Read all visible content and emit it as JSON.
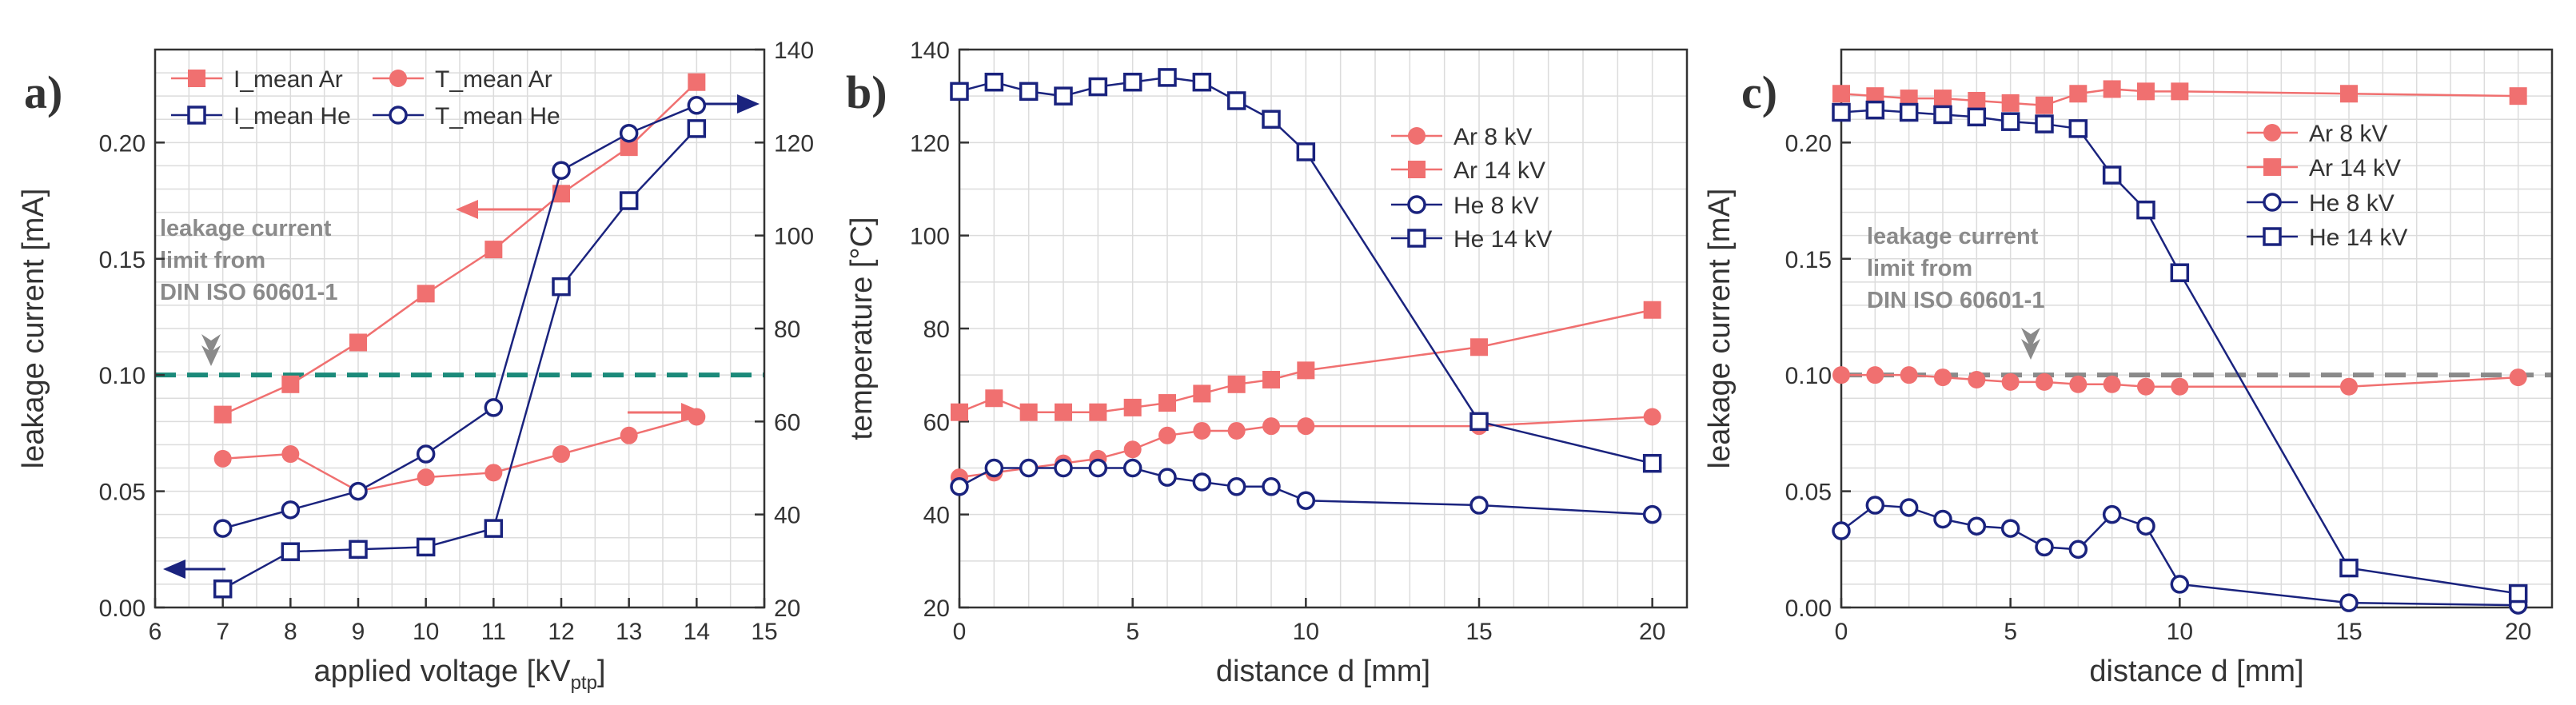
{
  "chart_data": [
    {
      "panel": "a)",
      "type": "line",
      "xlabel": "applied voltage [kV",
      "xlabel_sub": "ptp",
      "xlabel_end": "]",
      "ylabel": "leakage current [mA]",
      "ylabel_right": "",
      "xlim": [
        6,
        15
      ],
      "ylim": [
        0,
        0.24
      ],
      "ylim_right": [
        20,
        140
      ],
      "xticks": [
        "6",
        "7",
        "8",
        "9",
        "10",
        "11",
        "12",
        "13",
        "14",
        "15"
      ],
      "yticks": [
        "0.00",
        "0.05",
        "0.10",
        "0.15",
        "0.20"
      ],
      "yticks_right": [
        "20",
        "40",
        "60",
        "80",
        "100",
        "120",
        "140"
      ],
      "grid": true,
      "legend_position": "top-left",
      "reference_line": {
        "y": 0.1,
        "color": "#1b8a7a"
      },
      "annotation": [
        "leakage current",
        "limit from",
        "DIN ISO 60601-1"
      ],
      "series": [
        {
          "name": "I_mean Ar",
          "axis": "left",
          "marker": "filled-square",
          "color": "#f07070",
          "x": [
            7,
            8,
            9,
            10,
            11,
            12,
            13,
            14
          ],
          "y": [
            0.083,
            0.096,
            0.114,
            0.135,
            0.154,
            0.178,
            0.198,
            0.226
          ]
        },
        {
          "name": "T_mean Ar",
          "axis": "right",
          "marker": "filled-circle",
          "color": "#f07070",
          "x": [
            7,
            8,
            9,
            10,
            11,
            12,
            13,
            14
          ],
          "y": [
            52,
            53,
            45,
            48,
            49,
            53,
            57,
            61
          ]
        },
        {
          "name": "I_mean He",
          "axis": "left",
          "marker": "open-square",
          "color": "#1a237e",
          "x": [
            7,
            8,
            9,
            10,
            11,
            12,
            13,
            14
          ],
          "y": [
            0.008,
            0.024,
            0.025,
            0.026,
            0.034,
            0.138,
            0.175,
            0.206
          ]
        },
        {
          "name": "T_mean He",
          "axis": "right",
          "marker": "open-circle",
          "color": "#1a237e",
          "x": [
            7,
            8,
            9,
            10,
            11,
            12,
            13,
            14
          ],
          "y": [
            37,
            41,
            45,
            53,
            63,
            114,
            122,
            128
          ]
        }
      ]
    },
    {
      "panel": "b)",
      "type": "line",
      "xlabel": "distance d [mm]",
      "ylabel": "temperature [°C]",
      "xlim": [
        0,
        21
      ],
      "ylim": [
        20,
        140
      ],
      "xticks": [
        "0",
        "5",
        "10",
        "15",
        "20"
      ],
      "yticks": [
        "20",
        "40",
        "60",
        "80",
        "100",
        "120",
        "140"
      ],
      "grid": true,
      "legend_position": "top-right",
      "series": [
        {
          "name": "Ar 8 kV",
          "marker": "filled-circle",
          "color": "#f07070",
          "x": [
            0,
            1,
            2,
            3,
            4,
            5,
            6,
            7,
            8,
            9,
            10,
            15,
            20
          ],
          "y": [
            48,
            49,
            50,
            51,
            52,
            54,
            57,
            58,
            58,
            59,
            59,
            59,
            61
          ]
        },
        {
          "name": "Ar 14 kV",
          "marker": "filled-square",
          "color": "#f07070",
          "x": [
            0,
            1,
            2,
            3,
            4,
            5,
            6,
            7,
            8,
            9,
            10,
            15,
            20
          ],
          "y": [
            62,
            65,
            62,
            62,
            62,
            63,
            64,
            66,
            68,
            69,
            71,
            76,
            84
          ]
        },
        {
          "name": "He 8 kV",
          "marker": "open-circle",
          "color": "#1a237e",
          "x": [
            0,
            1,
            2,
            3,
            4,
            5,
            6,
            7,
            8,
            9,
            10,
            15,
            20
          ],
          "y": [
            46,
            50,
            50,
            50,
            50,
            50,
            48,
            47,
            46,
            46,
            43,
            42,
            40
          ]
        },
        {
          "name": "He 14 kV",
          "marker": "open-square",
          "color": "#1a237e",
          "x": [
            0,
            1,
            2,
            3,
            4,
            5,
            6,
            7,
            8,
            9,
            10,
            15,
            20
          ],
          "y": [
            131,
            133,
            131,
            130,
            132,
            133,
            134,
            133,
            129,
            125,
            118,
            60,
            51
          ]
        }
      ]
    },
    {
      "panel": "c)",
      "type": "line",
      "xlabel": "distance d [mm]",
      "ylabel": "leakage current [mA]",
      "xlim": [
        0,
        21
      ],
      "ylim": [
        0,
        0.24
      ],
      "xticks": [
        "0",
        "5",
        "10",
        "15",
        "20"
      ],
      "yticks": [
        "0.00",
        "0.05",
        "0.10",
        "0.15",
        "0.20"
      ],
      "grid": true,
      "legend_position": "top-right",
      "reference_line": {
        "y": 0.1,
        "color": "#8a8a8a"
      },
      "annotation": [
        "leakage current",
        "limit from",
        "DIN ISO 60601-1"
      ],
      "series": [
        {
          "name": "Ar 8 kV",
          "marker": "filled-circle",
          "color": "#f07070",
          "x": [
            0,
            1,
            2,
            3,
            4,
            5,
            6,
            7,
            8,
            9,
            10,
            15,
            20
          ],
          "y": [
            0.1,
            0.1,
            0.1,
            0.099,
            0.098,
            0.097,
            0.097,
            0.096,
            0.096,
            0.095,
            0.095,
            0.095,
            0.099
          ]
        },
        {
          "name": "Ar 14 kV",
          "marker": "filled-square",
          "color": "#f07070",
          "x": [
            0,
            1,
            2,
            3,
            4,
            5,
            6,
            7,
            8,
            9,
            10,
            15,
            20
          ],
          "y": [
            0.221,
            0.22,
            0.219,
            0.219,
            0.218,
            0.217,
            0.216,
            0.221,
            0.223,
            0.222,
            0.222,
            0.221,
            0.22
          ]
        },
        {
          "name": "He 8 kV",
          "marker": "open-circle",
          "color": "#1a237e",
          "x": [
            0,
            1,
            2,
            3,
            4,
            5,
            6,
            7,
            8,
            9,
            10,
            15,
            20
          ],
          "y": [
            0.033,
            0.044,
            0.043,
            0.038,
            0.035,
            0.034,
            0.026,
            0.025,
            0.04,
            0.035,
            0.01,
            0.002,
            0.001
          ]
        },
        {
          "name": "He 14 kV",
          "marker": "open-square",
          "color": "#1a237e",
          "x": [
            0,
            1,
            2,
            3,
            4,
            5,
            6,
            7,
            8,
            9,
            10,
            15,
            20
          ],
          "y": [
            0.213,
            0.214,
            0.213,
            0.212,
            0.211,
            0.209,
            0.208,
            0.206,
            0.186,
            0.171,
            0.144,
            0.017,
            0.006
          ]
        }
      ]
    }
  ]
}
